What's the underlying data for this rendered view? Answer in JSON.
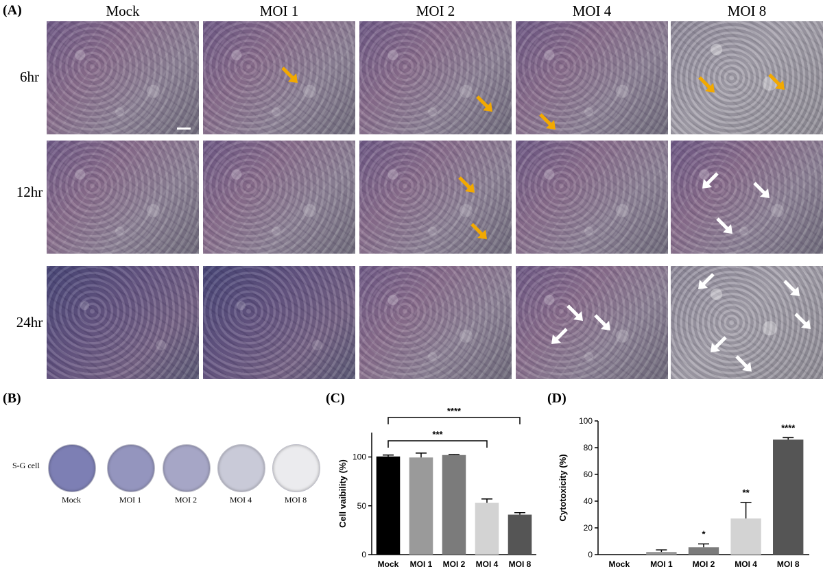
{
  "panelA": {
    "letter": "(A)",
    "columns": [
      "Mock",
      "MOI 1",
      "MOI 2",
      "MOI 4",
      "MOI 8"
    ],
    "rows": [
      "6hr",
      "12hr",
      "24hr"
    ]
  },
  "panelB": {
    "letter": "(B)",
    "row_label": "S-G cell",
    "dishes": [
      {
        "label": "Mock",
        "color": "#7d7fb4"
      },
      {
        "label": "MOI 1",
        "color": "#9495be"
      },
      {
        "label": "MOI 2",
        "color": "#a6a6c6"
      },
      {
        "label": "MOI 4",
        "color": "#c9cad8"
      },
      {
        "label": "MOI 8",
        "color": "#ebebee"
      }
    ]
  },
  "colors": {
    "arrow_yellow": "#f2a900",
    "arrow_white": "#ffffff"
  },
  "chart_data": [
    {
      "panel": "(C)",
      "type": "bar",
      "categories": [
        "Mock",
        "MOI 1",
        "MOI 2",
        "MOI 4",
        "MOI 8"
      ],
      "values": [
        100.5,
        99.5,
        102,
        53,
        41
      ],
      "errors": [
        1.5,
        4.5,
        0.5,
        4,
        2
      ],
      "colors": [
        "#000000",
        "#9a9a9a",
        "#7b7b7b",
        "#d3d3d3",
        "#555555"
      ],
      "ylabel": "Cell vaibility (%)",
      "ylim": [
        0,
        125
      ],
      "yticks": [
        0,
        50,
        100
      ],
      "significance": [
        {
          "from": "Mock",
          "to": "MOI 8",
          "label": "****"
        },
        {
          "from": "Mock",
          "to": "MOI 4",
          "label": "***"
        }
      ]
    },
    {
      "panel": "(D)",
      "type": "bar",
      "categories": [
        "Mock",
        "MOI 1",
        "MOI 2",
        "MOI 4",
        "MOI 8"
      ],
      "values": [
        0,
        2,
        5.5,
        27,
        86
      ],
      "errors": [
        0,
        1.5,
        2.5,
        12,
        1.5
      ],
      "colors": [
        "#000000",
        "#9a9a9a",
        "#7b7b7b",
        "#d3d3d3",
        "#555555"
      ],
      "ylabel": "Cytotoxicity (%)",
      "ylim": [
        0,
        100
      ],
      "yticks": [
        0,
        20,
        40,
        60,
        80,
        100
      ],
      "annotations": [
        "",
        "",
        "*",
        "**",
        "****"
      ]
    }
  ]
}
